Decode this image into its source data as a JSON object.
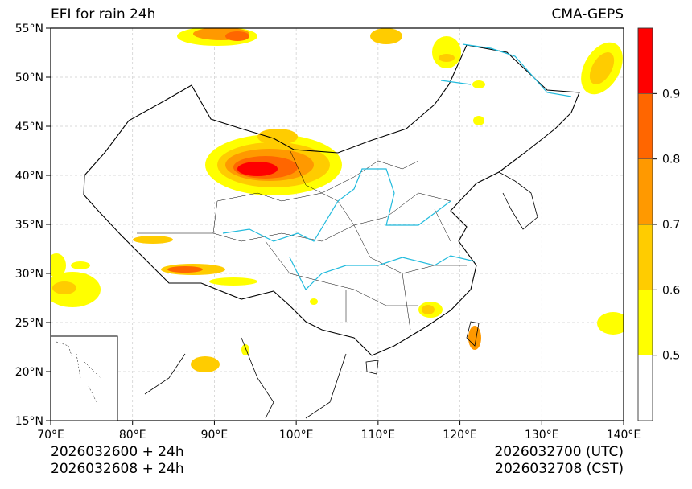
{
  "header": {
    "title": "EFI for rain 24h",
    "source": "CMA-GEPS"
  },
  "footer": {
    "init_utc": "2026032600 + 24h",
    "init_cst": "2026032608 + 24h",
    "valid_utc": "2026032700 (UTC)",
    "valid_cst": "2026032708 (CST)"
  },
  "chart_data": {
    "type": "map",
    "title": "EFI for rain 24h",
    "lon_range": [
      70,
      140
    ],
    "lat_range": [
      15,
      55
    ],
    "lon_ticks": [
      70,
      80,
      90,
      100,
      110,
      120,
      130,
      140
    ],
    "lon_labels": [
      "70°E",
      "80°E",
      "90°E",
      "100°E",
      "110°E",
      "120°E",
      "130°E",
      "140°E"
    ],
    "lat_ticks": [
      15,
      20,
      25,
      30,
      35,
      40,
      45,
      50,
      55
    ],
    "lat_labels": [
      "15°N",
      "20°N",
      "25°N",
      "30°N",
      "35°N",
      "40°N",
      "45°N",
      "50°N",
      "55°N"
    ],
    "grid": true,
    "colorbar": {
      "levels": [
        0.4,
        0.5,
        0.6,
        0.7,
        0.8,
        0.9,
        1.0
      ],
      "labels": [
        "0.5",
        "0.6",
        "0.7",
        "0.8",
        "0.9"
      ],
      "label_values": [
        0.5,
        0.6,
        0.7,
        0.8,
        0.9
      ],
      "colors": [
        "#ffffff",
        "#ffff00",
        "#ffcc00",
        "#ff9900",
        "#ff6600",
        "#ff0000"
      ]
    }
  }
}
